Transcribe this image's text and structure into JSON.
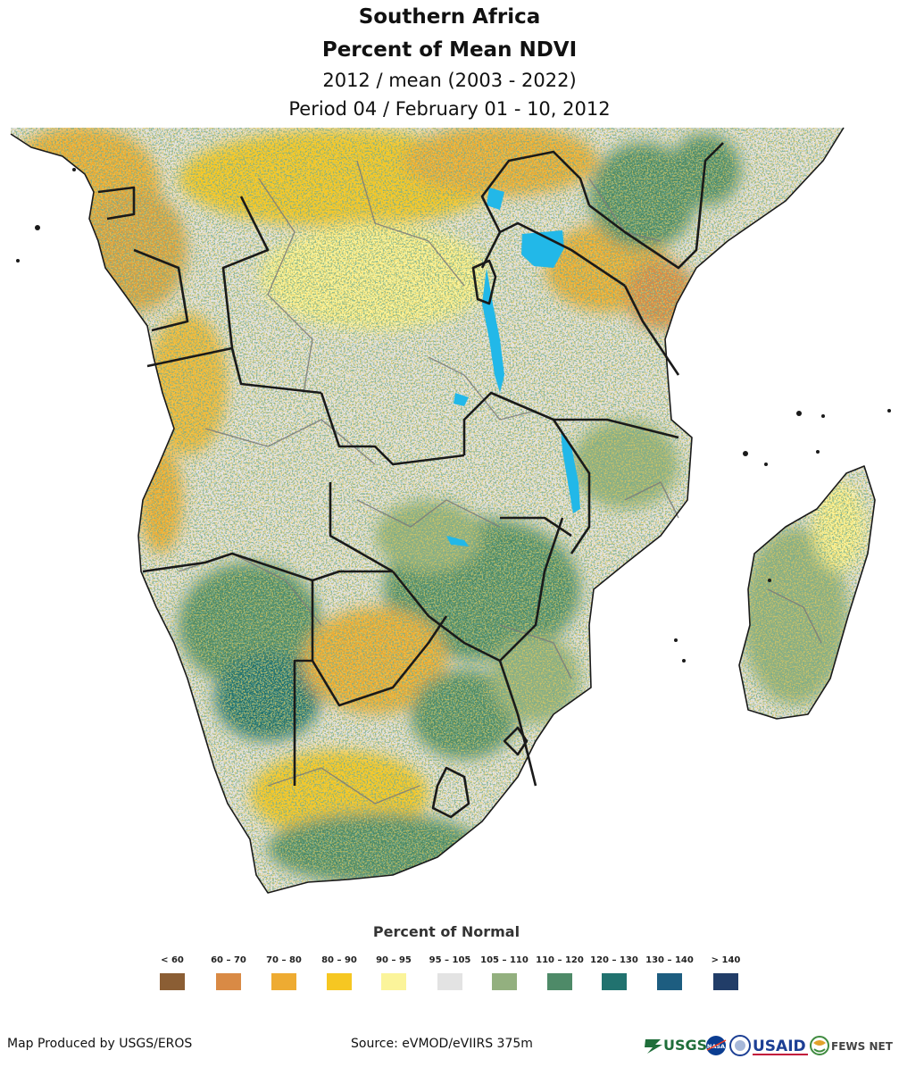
{
  "header": {
    "region": "Southern Africa",
    "product": "Percent of Mean NDVI",
    "comparison": "2012 / mean (2003 - 2022)",
    "period": "Period 04 / February 01 - 10, 2012"
  },
  "legend": {
    "title": "Percent of Normal",
    "classes": [
      {
        "label": "< 60",
        "color": "#8b5e34"
      },
      {
        "label": "60 – 70",
        "color": "#d98a45"
      },
      {
        "label": "70 – 80",
        "color": "#eeab32"
      },
      {
        "label": "80 – 90",
        "color": "#f6c722"
      },
      {
        "label": "90 – 95",
        "color": "#fbf49a"
      },
      {
        "label": "95 – 105",
        "color": "#e3e3e3"
      },
      {
        "label": "105 – 110",
        "color": "#93b07f"
      },
      {
        "label": "110 – 120",
        "color": "#4e8a68"
      },
      {
        "label": "120 – 130",
        "color": "#21726f"
      },
      {
        "label": "130 – 140",
        "color": "#1d5d80"
      },
      {
        "label": "> 140",
        "color": "#213d68"
      }
    ]
  },
  "footer": {
    "credit": "Map Produced by USGS/EROS",
    "source": "Source: eVMOD/eVIIRS 375m",
    "logos": {
      "usgs": "USGS",
      "nasa": "NASA",
      "usaid": "USAID",
      "fewsnet": "FEWS NET"
    }
  },
  "colors": {
    "water": "#22b8e8",
    "border": "#1a1a1a",
    "admin": "#7a7a7a"
  }
}
